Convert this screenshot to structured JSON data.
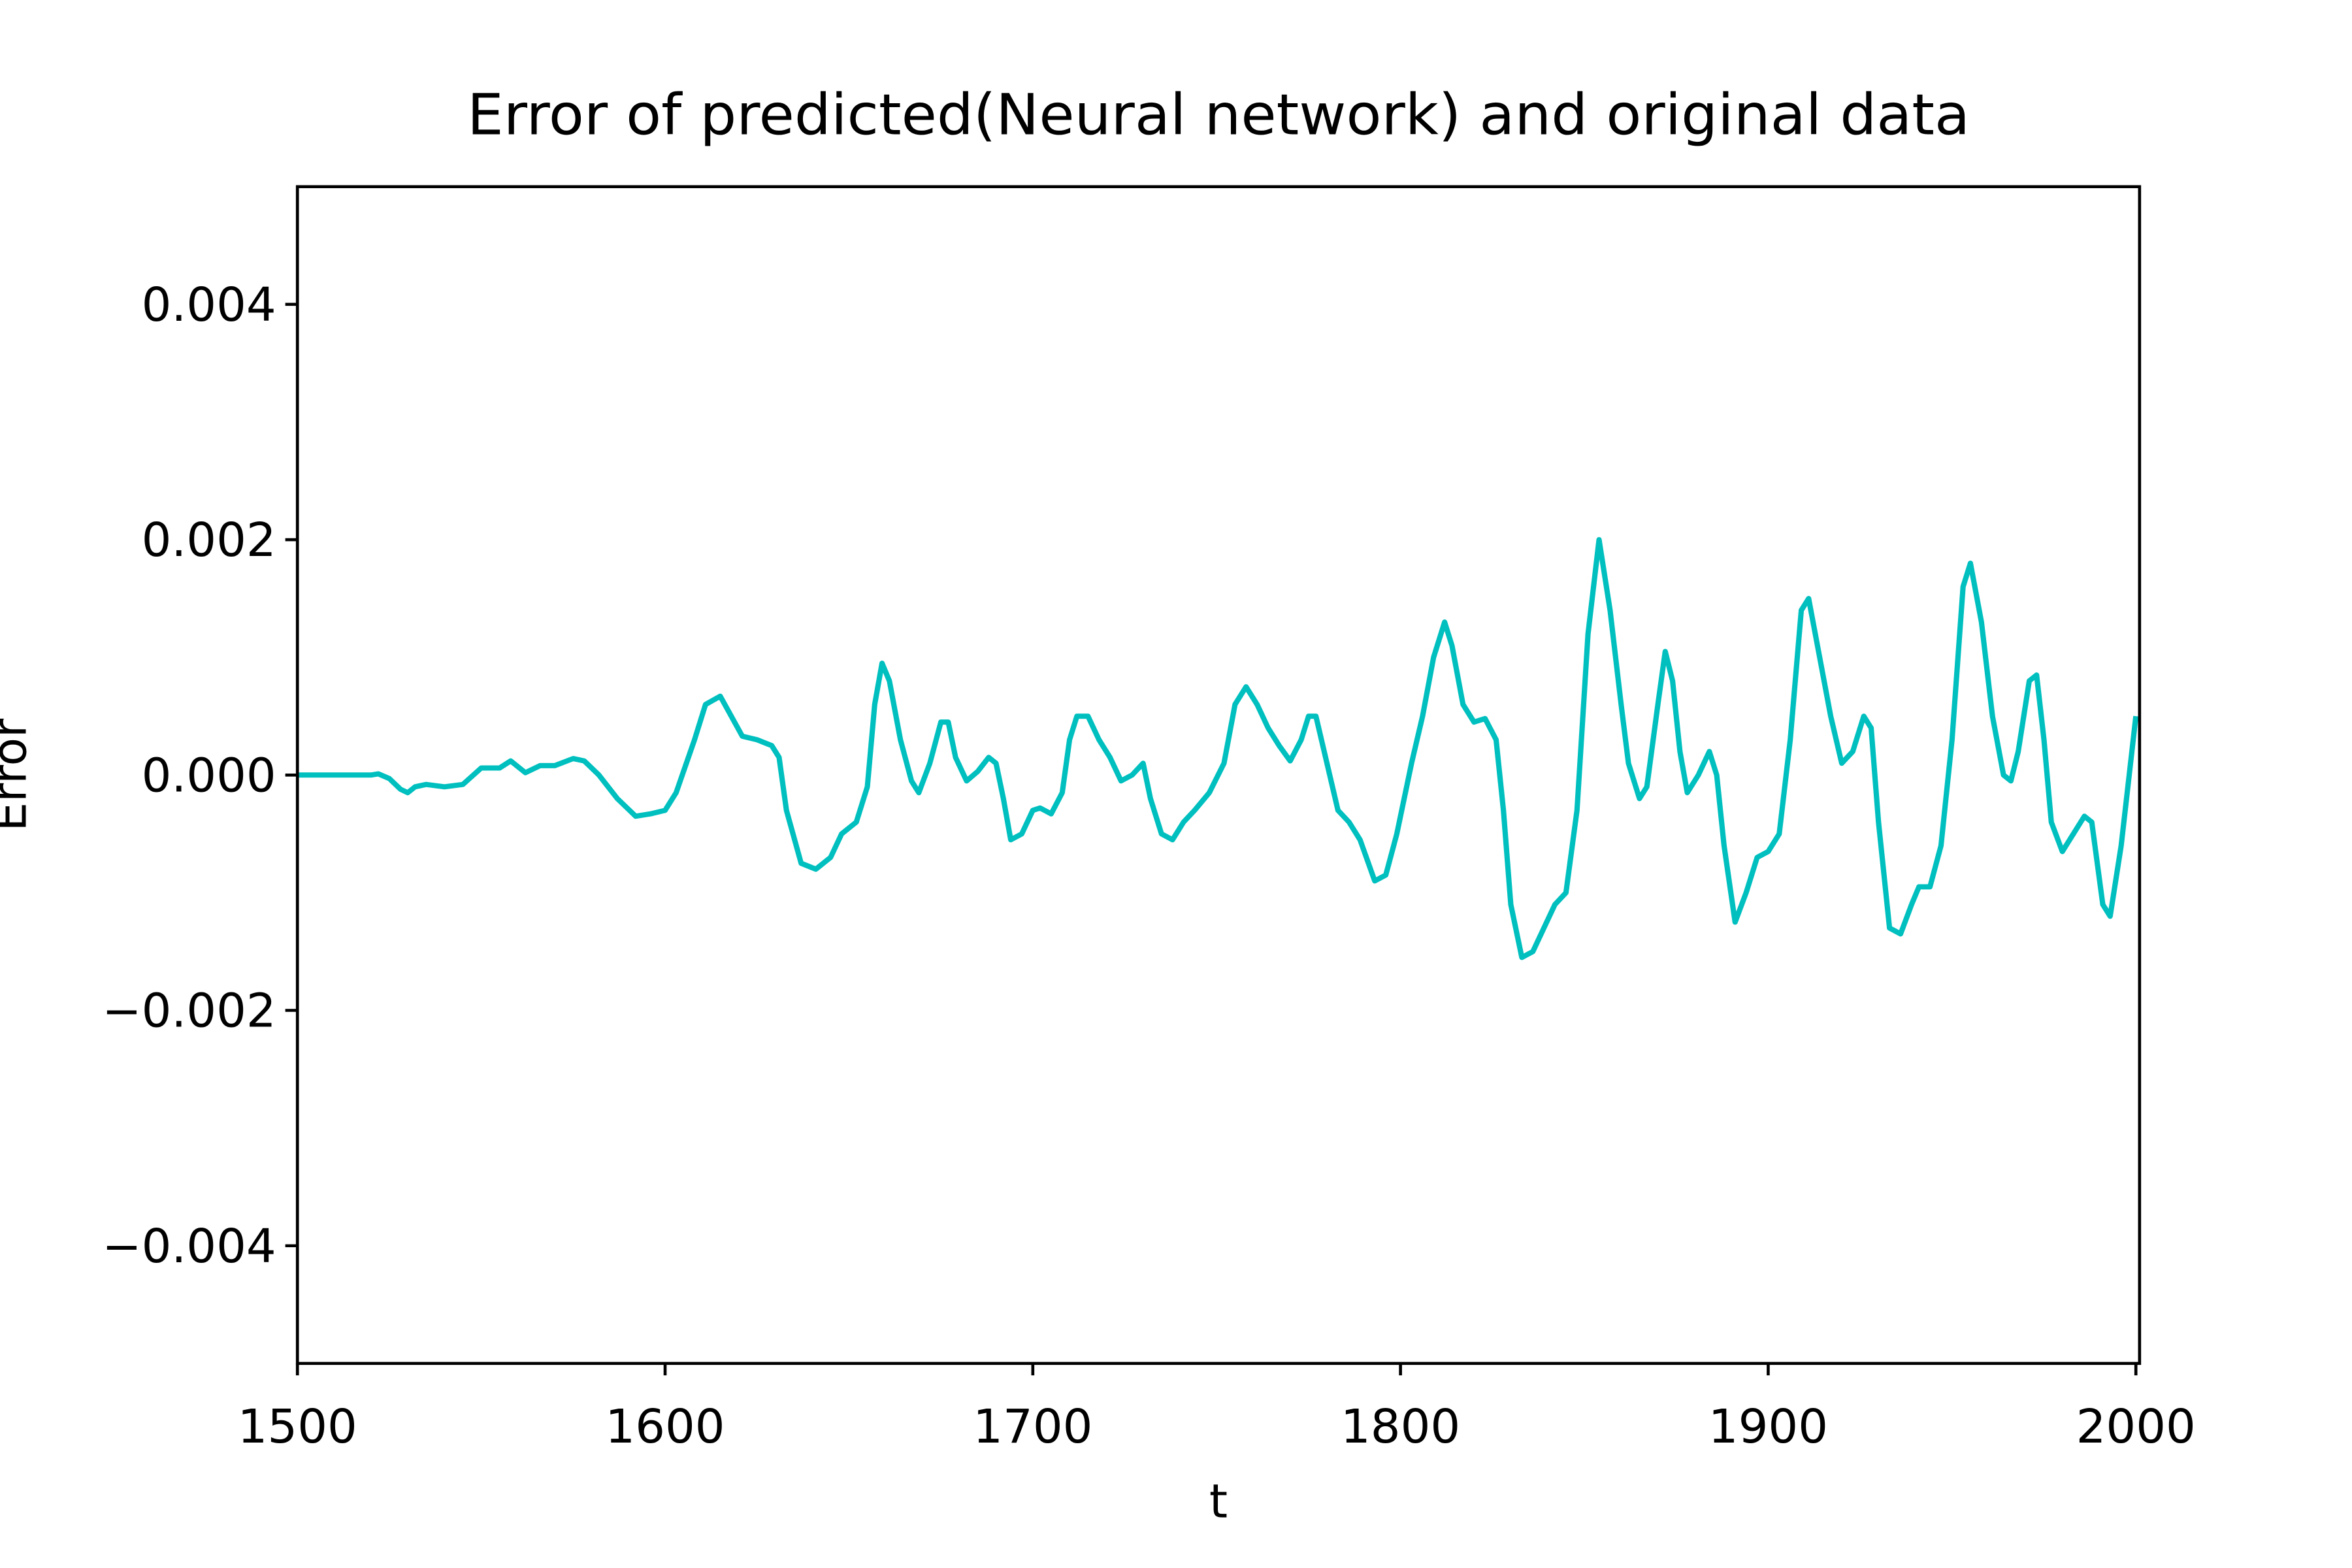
{
  "chart_data": {
    "type": "line",
    "title": "Error of predicted(Neural network) and original data",
    "x_label": "t",
    "y_label": "Error",
    "color": "#00bfbf",
    "xlim": [
      1500,
      2001
    ],
    "ylim": [
      -0.005,
      0.005
    ],
    "xticks": [
      1500,
      1600,
      1700,
      1800,
      1900,
      2000
    ],
    "yticks": [
      {
        "value": -0.004,
        "label": "−0.004"
      },
      {
        "value": -0.002,
        "label": "−0.002"
      },
      {
        "value": 0,
        "label": "0.000"
      },
      0.002,
      0.004
    ],
    "grid": false,
    "x": [
      1500,
      1510,
      1520,
      1522,
      1525,
      1528,
      1530,
      1532,
      1535,
      1540,
      1545,
      1550,
      1555,
      1558,
      1562,
      1566,
      1570,
      1575,
      1578,
      1582,
      1587,
      1592,
      1596,
      1600,
      1603,
      1608,
      1611,
      1615,
      1618,
      1621,
      1625,
      1629,
      1631,
      1633,
      1637,
      1641,
      1645,
      1648,
      1652,
      1655,
      1657,
      1659,
      1661,
      1664,
      1667,
      1669,
      1672,
      1675,
      1677,
      1679,
      1682,
      1685,
      1688,
      1690,
      1692,
      1694,
      1697,
      1700,
      1702,
      1705,
      1708,
      1710,
      1712,
      1715,
      1718,
      1721,
      1724,
      1727,
      1730,
      1732,
      1735,
      1738,
      1741,
      1744,
      1748,
      1752,
      1755,
      1758,
      1761,
      1764,
      1767,
      1770,
      1773,
      1775,
      1777,
      1780,
      1783,
      1786,
      1789,
      1793,
      1796,
      1799,
      1803,
      1806,
      1809,
      1812,
      1814,
      1817,
      1820,
      1823,
      1826,
      1828,
      1830,
      1833,
      1836,
      1839,
      1842,
      1845,
      1848,
      1851,
      1854,
      1857,
      1860,
      1862,
      1865,
      1867,
      1870,
      1872,
      1874,
      1876,
      1878,
      1881,
      1884,
      1886,
      1888,
      1891,
      1894,
      1897,
      1900,
      1903,
      1906,
      1909,
      1911,
      1914,
      1917,
      1920,
      1923,
      1926,
      1928,
      1930,
      1933,
      1936,
      1939,
      1941,
      1944,
      1947,
      1950,
      1953,
      1955,
      1958,
      1961,
      1964,
      1966,
      1968,
      1971,
      1973,
      1975,
      1977,
      1980,
      1983,
      1986,
      1988,
      1991,
      1993,
      1996,
      2000
    ],
    "values": [
      0,
      0,
      0,
      1e-05,
      -3e-05,
      -0.00012,
      -0.00015,
      -0.0001,
      -8e-05,
      -0.0001,
      -8e-05,
      6e-05,
      6e-05,
      0.00012,
      2e-05,
      8e-05,
      8e-05,
      0.00014,
      0.00012,
      0,
      -0.0002,
      -0.00035,
      -0.00033,
      -0.0003,
      -0.00015,
      0.0003,
      0.0006,
      0.00067,
      0.0005,
      0.00033,
      0.0003,
      0.00025,
      0.00015,
      -0.0003,
      -0.00075,
      -0.0008,
      -0.0007,
      -0.0005,
      -0.0004,
      -0.0001,
      0.0006,
      0.00095,
      0.0008,
      0.0003,
      -5e-05,
      -0.00015,
      0.0001,
      0.00045,
      0.00045,
      0.00015,
      -5e-05,
      3e-05,
      0.00015,
      0.0001,
      -0.0002,
      -0.00055,
      -0.0005,
      -0.0003,
      -0.00028,
      -0.00033,
      -0.00015,
      0.0003,
      0.0005,
      0.0005,
      0.0003,
      0.00015,
      -5e-05,
      0,
      0.0001,
      -0.0002,
      -0.0005,
      -0.00055,
      -0.0004,
      -0.0003,
      -0.00015,
      0.0001,
      0.0006,
      0.00075,
      0.0006,
      0.0004,
      0.00025,
      0.00012,
      0.0003,
      0.0005,
      0.0005,
      0.0001,
      -0.0003,
      -0.0004,
      -0.00055,
      -0.0009,
      -0.00085,
      -0.0005,
      0.0001,
      0.0005,
      0.001,
      0.0013,
      0.0011,
      0.0006,
      0.00045,
      0.00048,
      0.0003,
      -0.0003,
      -0.0011,
      -0.00155,
      -0.0015,
      -0.0013,
      -0.0011,
      -0.001,
      -0.0003,
      0.0012,
      0.002,
      0.0014,
      0.0006,
      0.0001,
      -0.0002,
      -0.0001,
      0.0006,
      0.00105,
      0.0008,
      0.0002,
      -0.00015,
      0,
      0.0002,
      0,
      -0.0006,
      -0.00125,
      -0.001,
      -0.0007,
      -0.00065,
      -0.0005,
      0.0003,
      0.0014,
      0.0015,
      0.001,
      0.0005,
      0.0001,
      0.0002,
      0.0005,
      0.0004,
      -0.0004,
      -0.0013,
      -0.00135,
      -0.0011,
      -0.00095,
      -0.00095,
      -0.0006,
      0.0003,
      0.0016,
      0.0018,
      0.0013,
      0.0005,
      0,
      -5e-05,
      0.0002,
      0.0008,
      0.00085,
      0.0003,
      -0.0004,
      -0.00065,
      -0.0005,
      -0.00035,
      -0.0004,
      -0.0011,
      -0.0012,
      -0.0006,
      0.0005
    ]
  }
}
